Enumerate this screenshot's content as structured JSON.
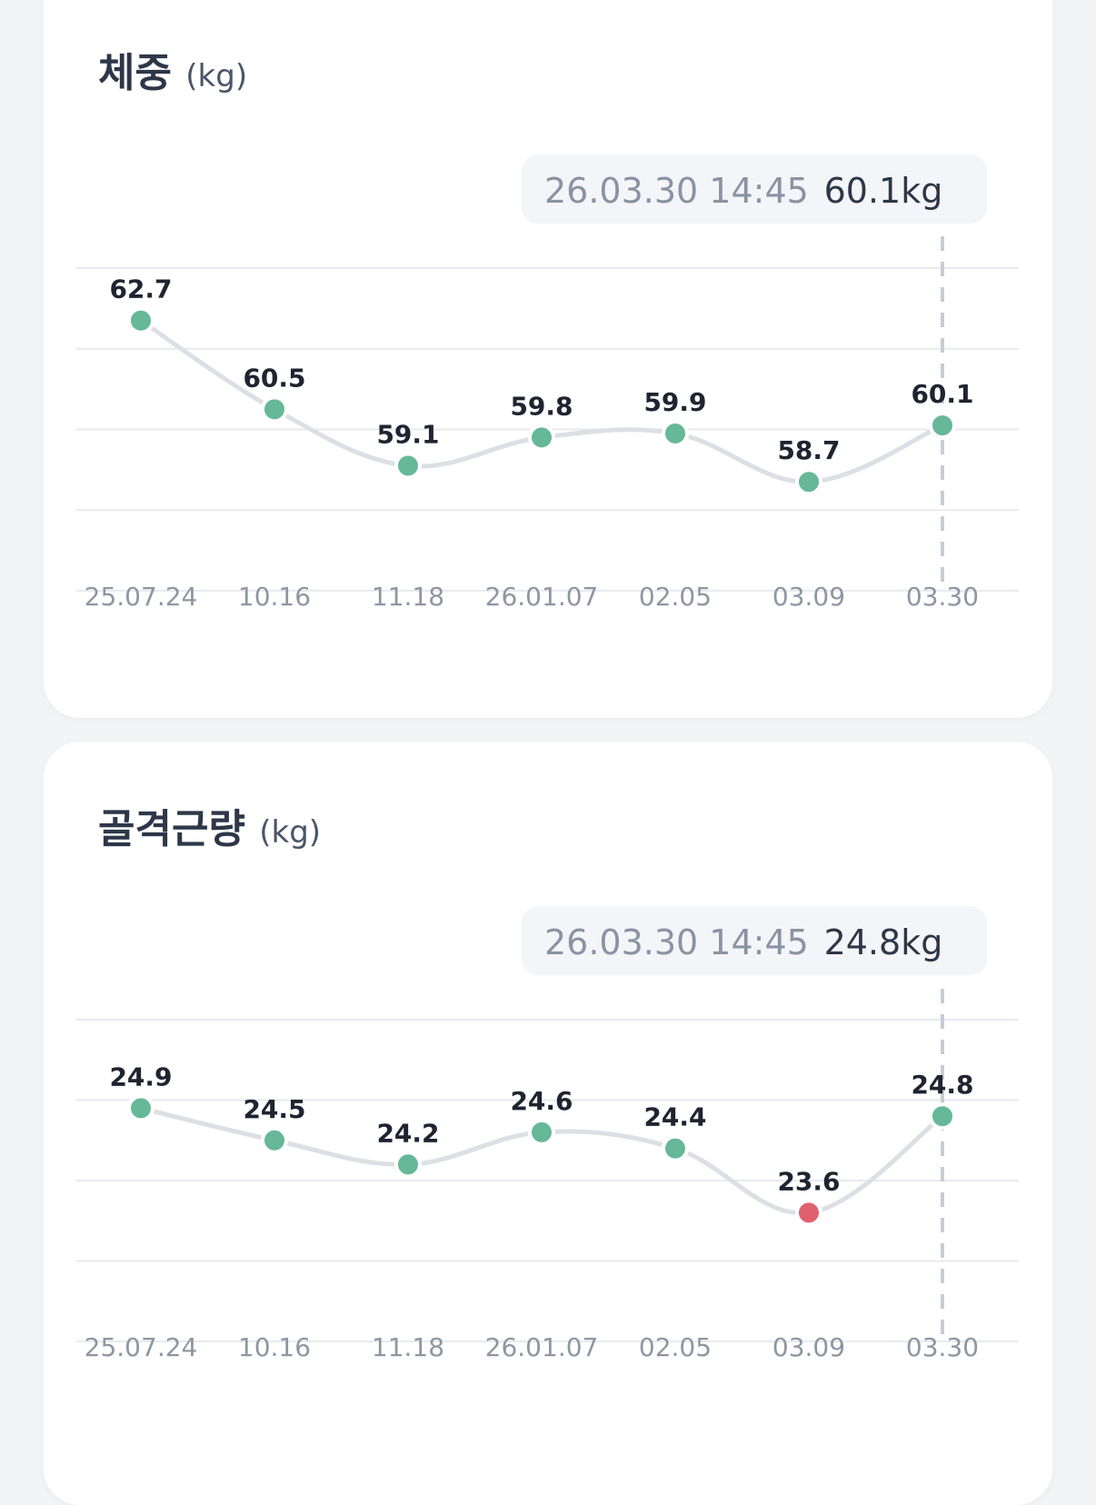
{
  "cards": [
    {
      "title": "체중",
      "unit": "(kg)",
      "tooltip": {
        "date": "26.03.30 14:45",
        "value": "60.1kg"
      },
      "chart_data": {
        "type": "line",
        "categories": [
          "25.07.24",
          "10.16",
          "11.18",
          "26.01.07",
          "02.05",
          "03.09",
          "03.30"
        ],
        "values": [
          62.7,
          60.5,
          59.1,
          59.8,
          59.9,
          58.7,
          60.1
        ],
        "data_labels": [
          "62.7",
          "60.5",
          "59.1",
          "59.8",
          "59.9",
          "58.7",
          "60.1"
        ],
        "ylim": [
          56.0,
          64.0
        ],
        "grid": true,
        "highlight_index": 6,
        "colors": {
          "normal": "#66b898",
          "low": "#e0606e",
          "line": "#dcdfe4"
        },
        "flagged_low": []
      }
    },
    {
      "title": "골격근량",
      "unit": "(kg)",
      "tooltip": {
        "date": "26.03.30 14:45",
        "value": "24.8kg"
      },
      "chart_data": {
        "type": "line",
        "categories": [
          "25.07.24",
          "10.16",
          "11.18",
          "26.01.07",
          "02.05",
          "03.09",
          "03.30"
        ],
        "values": [
          24.9,
          24.5,
          24.2,
          24.6,
          24.4,
          23.6,
          24.8
        ],
        "data_labels": [
          "24.9",
          "24.5",
          "24.2",
          "24.6",
          "24.4",
          "23.6",
          "24.8"
        ],
        "ylim": [
          22.0,
          26.0
        ],
        "grid": true,
        "highlight_index": 6,
        "colors": {
          "normal": "#66b898",
          "low": "#e0606e",
          "line": "#dcdfe4"
        },
        "flagged_low": [
          5
        ]
      }
    }
  ]
}
